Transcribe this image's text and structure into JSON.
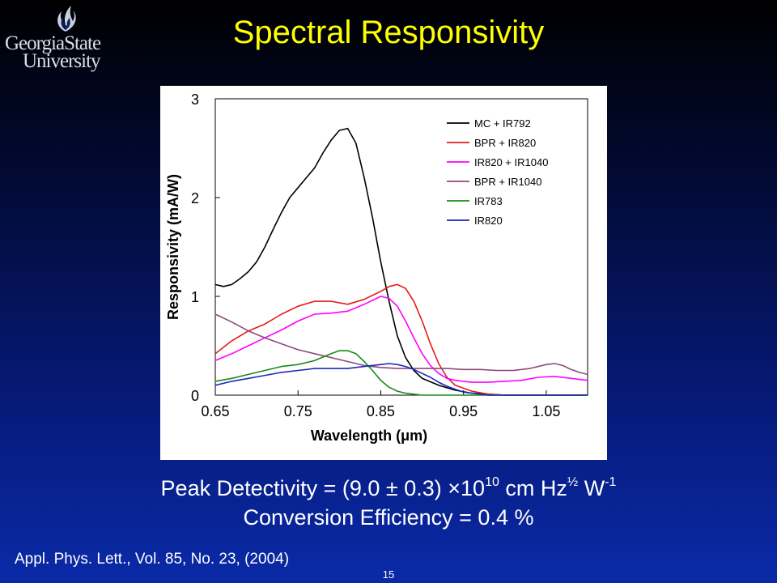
{
  "logo": {
    "line1": "GeorgiaState",
    "line2": "University"
  },
  "slide": {
    "title": "Spectral Responsivity",
    "detectivity": {
      "prefix": "Peak Detectivity = (9.0 ± 0.3) ×10",
      "exp": "10",
      "mid": " cm Hz",
      "half": "½",
      "unit": " W",
      "neg": "-1"
    },
    "efficiency": "Conversion Efficiency = 0.4 %",
    "reference": "Appl. Phys. Lett., Vol. 85, No. 23, (2004)",
    "page_number": "15"
  },
  "chart_data": {
    "type": "line",
    "xlabel": "Wavelength (μm)",
    "ylabel": "Responsivity (mA/W)",
    "xlim": [
      0.65,
      1.1
    ],
    "ylim": [
      0,
      3
    ],
    "xticks": [
      "0.65",
      "0.75",
      "0.85",
      "0.95",
      "1.05"
    ],
    "xtick_values": [
      0.65,
      0.75,
      0.85,
      0.95,
      1.05
    ],
    "yticks": [
      "0",
      "1",
      "2",
      "3"
    ],
    "ytick_values": [
      0,
      1,
      2,
      3
    ],
    "grid": false,
    "legend_position": "top-right",
    "series": [
      {
        "name": "MC + IR792",
        "color": "#000000",
        "x": [
          0.65,
          0.66,
          0.67,
          0.68,
          0.69,
          0.7,
          0.71,
          0.72,
          0.73,
          0.74,
          0.75,
          0.76,
          0.77,
          0.78,
          0.79,
          0.8,
          0.81,
          0.82,
          0.83,
          0.84,
          0.85,
          0.86,
          0.87,
          0.88,
          0.89,
          0.9,
          0.92,
          0.94,
          0.96,
          0.98,
          1.0,
          1.05,
          1.1
        ],
        "y": [
          1.12,
          1.1,
          1.12,
          1.18,
          1.25,
          1.35,
          1.5,
          1.68,
          1.85,
          2.0,
          2.1,
          2.2,
          2.3,
          2.45,
          2.58,
          2.68,
          2.7,
          2.55,
          2.2,
          1.8,
          1.35,
          0.95,
          0.6,
          0.38,
          0.25,
          0.17,
          0.1,
          0.05,
          0.02,
          0.01,
          0.0,
          0.0,
          0.0
        ]
      },
      {
        "name": "BPR + IR820",
        "color": "#e31a1c",
        "x": [
          0.65,
          0.67,
          0.69,
          0.71,
          0.73,
          0.75,
          0.77,
          0.79,
          0.81,
          0.83,
          0.85,
          0.86,
          0.87,
          0.88,
          0.89,
          0.9,
          0.91,
          0.92,
          0.93,
          0.94,
          0.96,
          0.98,
          1.0,
          1.05,
          1.1
        ],
        "y": [
          0.42,
          0.55,
          0.65,
          0.72,
          0.82,
          0.9,
          0.95,
          0.95,
          0.92,
          0.97,
          1.05,
          1.1,
          1.12,
          1.08,
          0.95,
          0.75,
          0.52,
          0.32,
          0.18,
          0.1,
          0.04,
          0.01,
          0.0,
          0.0,
          0.0
        ]
      },
      {
        "name": "IR820 + IR1040",
        "color": "#ff00ff",
        "x": [
          0.65,
          0.67,
          0.69,
          0.71,
          0.73,
          0.75,
          0.77,
          0.79,
          0.81,
          0.83,
          0.85,
          0.86,
          0.87,
          0.88,
          0.89,
          0.9,
          0.91,
          0.92,
          0.93,
          0.94,
          0.96,
          0.98,
          1.0,
          1.02,
          1.04,
          1.06,
          1.08,
          1.1
        ],
        "y": [
          0.35,
          0.42,
          0.5,
          0.58,
          0.66,
          0.75,
          0.82,
          0.83,
          0.85,
          0.92,
          1.0,
          0.98,
          0.9,
          0.75,
          0.58,
          0.42,
          0.3,
          0.22,
          0.17,
          0.15,
          0.13,
          0.13,
          0.14,
          0.15,
          0.18,
          0.19,
          0.17,
          0.15
        ]
      },
      {
        "name": "BPR + IR1040",
        "color": "#8b4a7a",
        "x": [
          0.65,
          0.67,
          0.69,
          0.71,
          0.73,
          0.75,
          0.77,
          0.79,
          0.81,
          0.83,
          0.85,
          0.87,
          0.89,
          0.91,
          0.93,
          0.95,
          0.97,
          0.99,
          1.01,
          1.03,
          1.05,
          1.06,
          1.07,
          1.08,
          1.09,
          1.1
        ],
        "y": [
          0.82,
          0.74,
          0.65,
          0.58,
          0.52,
          0.46,
          0.42,
          0.38,
          0.34,
          0.3,
          0.28,
          0.27,
          0.27,
          0.27,
          0.27,
          0.26,
          0.26,
          0.25,
          0.25,
          0.27,
          0.31,
          0.32,
          0.3,
          0.26,
          0.23,
          0.21
        ]
      },
      {
        "name": "IR783",
        "color": "#1a8a1a",
        "x": [
          0.65,
          0.67,
          0.69,
          0.71,
          0.73,
          0.75,
          0.77,
          0.79,
          0.8,
          0.81,
          0.82,
          0.83,
          0.84,
          0.85,
          0.86,
          0.87,
          0.88,
          0.89,
          0.9,
          0.92,
          0.95,
          1.0,
          1.05,
          1.1
        ],
        "y": [
          0.14,
          0.17,
          0.21,
          0.25,
          0.29,
          0.31,
          0.35,
          0.42,
          0.45,
          0.45,
          0.42,
          0.34,
          0.25,
          0.15,
          0.08,
          0.04,
          0.02,
          0.01,
          0.0,
          0.0,
          0.0,
          0.0,
          0.0,
          0.0
        ]
      },
      {
        "name": "IR820",
        "color": "#1a2ab8",
        "x": [
          0.65,
          0.67,
          0.69,
          0.71,
          0.73,
          0.75,
          0.77,
          0.79,
          0.81,
          0.83,
          0.85,
          0.86,
          0.87,
          0.88,
          0.89,
          0.9,
          0.91,
          0.92,
          0.93,
          0.94,
          0.95,
          0.96,
          0.98,
          1.0,
          1.05,
          1.1
        ],
        "y": [
          0.1,
          0.14,
          0.17,
          0.2,
          0.23,
          0.25,
          0.27,
          0.27,
          0.27,
          0.29,
          0.31,
          0.32,
          0.31,
          0.29,
          0.26,
          0.22,
          0.18,
          0.13,
          0.09,
          0.06,
          0.03,
          0.02,
          0.0,
          0.0,
          0.0,
          0.0
        ]
      }
    ]
  }
}
